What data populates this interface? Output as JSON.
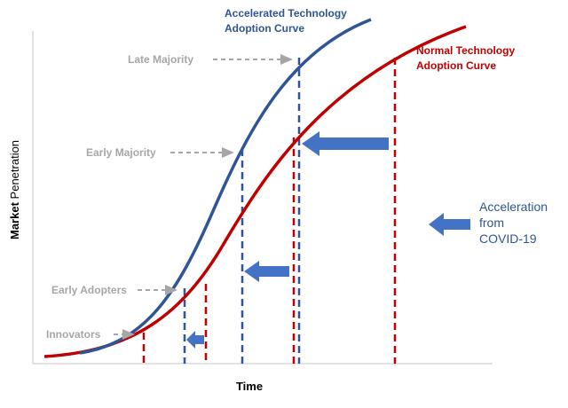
{
  "curves": {
    "accelerated": [
      "Accelerated Technology",
      "Adoption Curve"
    ],
    "normal": [
      "Normal Technology",
      "Adoption Curve"
    ]
  },
  "stages": {
    "late_majority": "Late Majority",
    "early_majority": "Early Majority",
    "early_adopters": "Early Adopters",
    "innovators": "Innovators"
  },
  "annotation": [
    "Acceleration",
    "from",
    "COVID-19"
  ],
  "y_axis": {
    "bold": "Market",
    "rest": "Penetration"
  },
  "x_axis": "Time"
}
